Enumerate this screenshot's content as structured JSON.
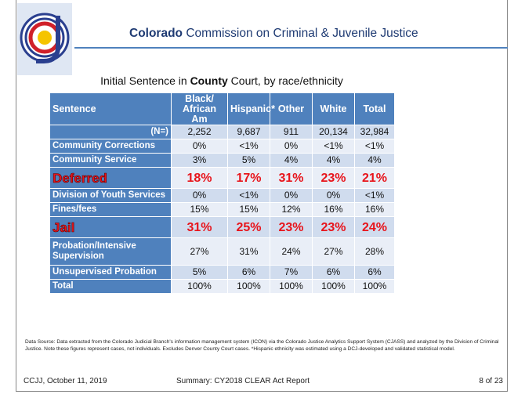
{
  "header": {
    "title_bold": "Colorado",
    "title_rest": "Commission on Criminal & Juvenile Justice"
  },
  "table": {
    "title": [
      "Initial Sentence in ",
      "County",
      " Court, by race/ethnicity"
    ],
    "columns": [
      "Sentence",
      "Black/ African Am",
      "Hispanic*",
      "Other",
      "White",
      "Total"
    ],
    "rows": [
      [
        "(N=)",
        "2,252",
        "9,687",
        "911",
        "20,134",
        "32,984"
      ],
      [
        "Community Corrections",
        "0%",
        "<1%",
        "0%",
        "<1%",
        "<1%"
      ],
      [
        "Community Service",
        "3%",
        "5%",
        "4%",
        "4%",
        "4%"
      ],
      [
        "Deferred",
        "18%",
        "17%",
        "31%",
        "23%",
        "21%"
      ],
      [
        "Division of Youth Services",
        "0%",
        "<1%",
        "0%",
        "0%",
        "<1%"
      ],
      [
        "Fines/fees",
        "15%",
        "15%",
        "12%",
        "16%",
        "16%"
      ],
      [
        "Jail",
        "31%",
        "25%",
        "23%",
        "23%",
        "24%"
      ],
      [
        "Probation/Intensive Supervision",
        "27%",
        "31%",
        "24%",
        "27%",
        "28%"
      ],
      [
        "Unsupervised Probation",
        "5%",
        "6%",
        "7%",
        "6%",
        "6%"
      ],
      [
        "Total",
        "100%",
        "100%",
        "100%",
        "100%",
        "100%"
      ]
    ]
  },
  "source": "Data Source: Data extracted from the Colorado Judicial Branch's information management system (ICON) via the Colorado Justice Analytics Support System (CJASS) and analyzed by the Division of Criminal Justice. Note these figures represent cases, not individuals. Excludes Denver County Court cases. *Hispanic ethnicity was estimated using a DCJ-developed and validated statistical model.",
  "footer": {
    "left": "CCJJ, October 11, 2019",
    "center": "Summary: CY2018 CLEAR Act Report",
    "right": "8 of 23"
  }
}
